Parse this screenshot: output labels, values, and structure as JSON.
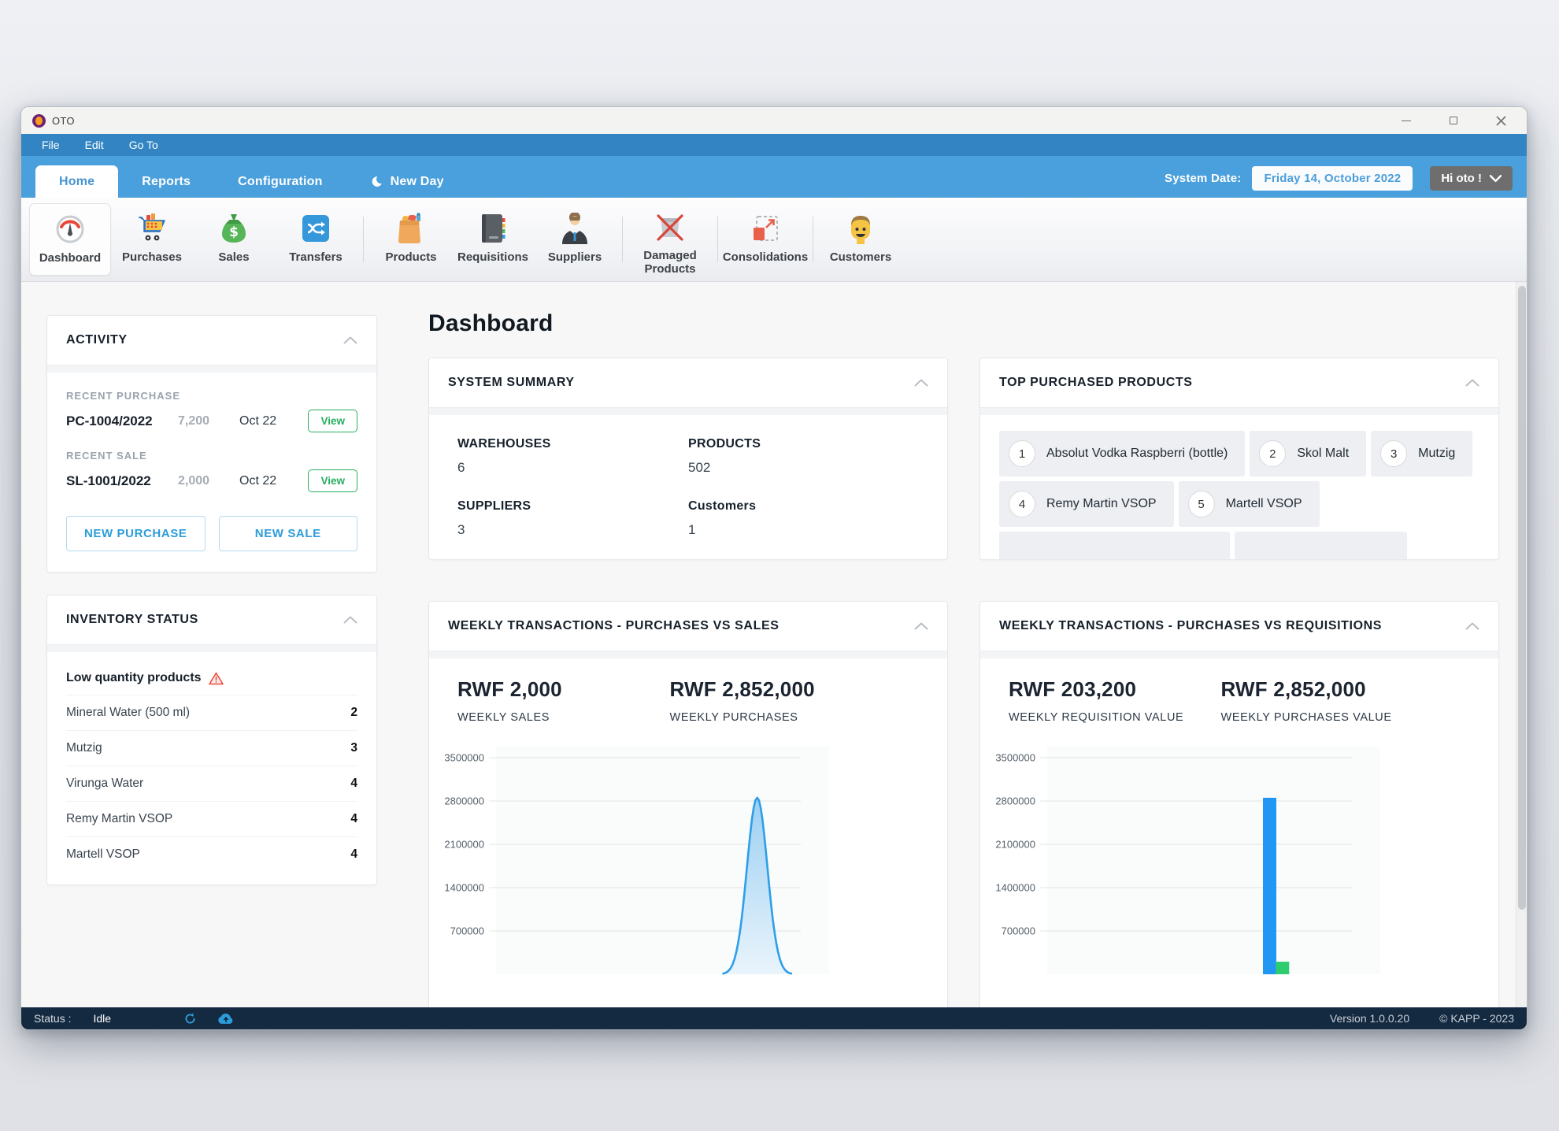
{
  "window": {
    "title": "OTO"
  },
  "menubar": {
    "items": [
      {
        "label": "File"
      },
      {
        "label": "Edit"
      },
      {
        "label": "Go To"
      }
    ]
  },
  "navbar": {
    "tabs": [
      {
        "label": "Home",
        "active": true
      },
      {
        "label": "Reports"
      },
      {
        "label": "Configuration"
      },
      {
        "label": "New Day"
      }
    ],
    "system_date_label": "System Date:",
    "system_date": "Friday 14, October 2022",
    "user_button": "Hi oto !"
  },
  "toolbar": {
    "items": [
      {
        "label": "Dashboard",
        "icon": "gauge-icon",
        "active": true
      },
      {
        "label": "Purchases",
        "icon": "cart-icon"
      },
      {
        "label": "Sales",
        "icon": "money-bag-icon"
      },
      {
        "label": "Transfers",
        "icon": "shuffle-icon"
      },
      {
        "label": "Products",
        "icon": "shopping-bag-icon"
      },
      {
        "label": "Requisitions",
        "icon": "ledger-icon"
      },
      {
        "label": "Suppliers",
        "icon": "businessman-icon"
      },
      {
        "label": "Damaged Products",
        "icon": "damaged-box-icon"
      },
      {
        "label": "Consolidations",
        "icon": "merge-icon"
      },
      {
        "label": "Customers",
        "icon": "customer-icon"
      }
    ]
  },
  "activity": {
    "title": "ACTIVITY",
    "recent_purchase_label": "RECENT PURCHASE",
    "recent_purchase": {
      "ref": "PC-1004/2022",
      "amount": "7,200",
      "date": "Oct 22",
      "action": "View"
    },
    "recent_sale_label": "RECENT SALE",
    "recent_sale": {
      "ref": "SL-1001/2022",
      "amount": "2,000",
      "date": "Oct 22",
      "action": "View"
    },
    "new_purchase_label": "NEW PURCHASE",
    "new_sale_label": "NEW SALE"
  },
  "inventory": {
    "title": "INVENTORY STATUS",
    "subtitle": "Low quantity products",
    "items": [
      {
        "name": "Mineral Water (500 ml)",
        "qty": "2"
      },
      {
        "name": "Mutzig",
        "qty": "3"
      },
      {
        "name": "Virunga Water",
        "qty": "4"
      },
      {
        "name": "Remy Martin VSOP",
        "qty": "4"
      },
      {
        "name": "Martell VSOP",
        "qty": "4"
      }
    ]
  },
  "main": {
    "page_title": "Dashboard",
    "system_summary": {
      "title": "SYSTEM SUMMARY",
      "stats": [
        {
          "label": "WAREHOUSES",
          "value": "6"
        },
        {
          "label": "PRODUCTS",
          "value": "502"
        },
        {
          "label": "SUPPLIERS",
          "value": "3"
        },
        {
          "label": "Customers",
          "value": "1"
        }
      ]
    },
    "top_products": {
      "title": "TOP PURCHASED PRODUCTS",
      "items": [
        {
          "rank": "1",
          "name": "Absolut Vodka Raspberri (bottle)"
        },
        {
          "rank": "2",
          "name": "Skol Malt"
        },
        {
          "rank": "3",
          "name": "Mutzig"
        },
        {
          "rank": "4",
          "name": "Remy Martin VSOP"
        },
        {
          "rank": "5",
          "name": "Martell VSOP"
        }
      ]
    }
  },
  "chart_data": [
    {
      "type": "area",
      "title": "WEEKLY TRANSACTIONS - PURCHASES VS SALES",
      "stats": [
        {
          "value": "RWF 2,000",
          "label": "WEEKLY SALES"
        },
        {
          "value": "RWF 2,852,000",
          "label": "WEEKLY PURCHASES"
        }
      ],
      "ylim": [
        0,
        3500000
      ],
      "yticks": [
        3500000,
        2800000,
        2100000,
        1400000,
        700000
      ],
      "grid": true,
      "legend": "none",
      "series": [
        {
          "name": "Weekly Purchases",
          "peak_value": 2852000,
          "x_position": 0.857,
          "color": "#2d9fe8"
        }
      ]
    },
    {
      "type": "bar",
      "title": "WEEKLY TRANSACTIONS - PURCHASES VS REQUISITIONS",
      "stats": [
        {
          "value": "RWF 203,200",
          "label": "WEEKLY REQUISITION VALUE"
        },
        {
          "value": "RWF 2,852,000",
          "label": "WEEKLY PURCHASES VALUE"
        }
      ],
      "ylim": [
        0,
        3500000
      ],
      "yticks": [
        3500000,
        2800000,
        2100000,
        1400000,
        700000
      ],
      "grid": true,
      "legend": "none",
      "bars": [
        {
          "name": "Weekly Purchases",
          "value": 2852000,
          "x_position": 0.73,
          "color": "#2196f3"
        },
        {
          "name": "Weekly Requisitions",
          "value": 203200,
          "x_position": 0.772,
          "color": "#2ecc71"
        }
      ]
    }
  ],
  "statusbar": {
    "status_label": "Status :",
    "status_value": "Idle",
    "version": "Version 1.0.0.20",
    "copyright": "© KAPP - 2023"
  },
  "colors": {
    "menubar": "#3285c2",
    "navbar": "#4aa0dc",
    "accent_blue": "#2b9cd8",
    "green": "#27ae60",
    "warning_red": "#e74c3c",
    "statusbar": "#142a40",
    "chart_blue": "#2196f3",
    "chart_green": "#2ecc71"
  }
}
